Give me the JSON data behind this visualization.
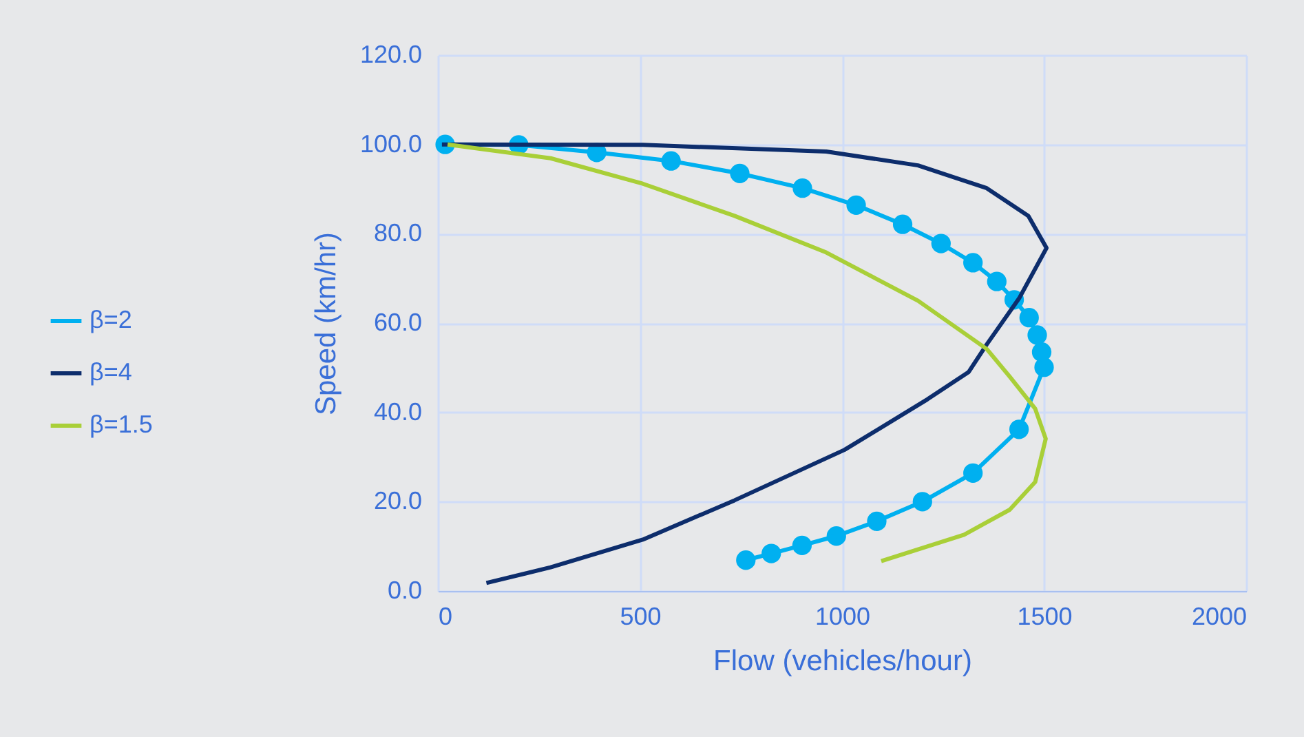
{
  "chart_data": {
    "type": "line",
    "xlabel": "Flow (vehicles/hour)",
    "ylabel": "Speed (km/hr)",
    "xlim": [
      0,
      2000
    ],
    "xticks": [
      0,
      500,
      1000,
      1500,
      2000
    ],
    "ylim": [
      0,
      120
    ],
    "yticks": [
      {
        "value": 0,
        "label": "0.0"
      },
      {
        "value": 20,
        "label": "20.0"
      },
      {
        "value": 40,
        "label": "40.0"
      },
      {
        "value": 60,
        "label": "60.0"
      },
      {
        "value": 80,
        "label": "80.0"
      },
      {
        "value": 100,
        "label": "100.0"
      },
      {
        "value": 120,
        "label": "120.0"
      }
    ],
    "grid": true,
    "legend": "left",
    "line_style": "solid",
    "series": [
      {
        "name": "β=2",
        "color": "#00b0f0",
        "marker": "circle",
        "x": [
          18,
          200,
          393,
          577,
          747,
          902,
          1035,
          1150,
          1245,
          1324,
          1383,
          1426,
          1463,
          1483,
          1494,
          1500,
          1438,
          1324,
          1199,
          1086,
          986,
          901,
          825,
          762
        ],
        "values": [
          100,
          99.9,
          98.2,
          96.3,
          93.5,
          90.2,
          86.4,
          82.1,
          77.8,
          73.5,
          69.3,
          65.2,
          61.2,
          57.3,
          53.5,
          50.1,
          36.2,
          26.4,
          20.0,
          15.6,
          12.3,
          10.2,
          8.4,
          6.9
        ]
      },
      {
        "name": "β=4",
        "color": "#0d2d6c",
        "marker": "none",
        "x": [
          10,
          507,
          961,
          1188,
          1358,
          1461,
          1506,
          1438,
          1358,
          1313,
          1211,
          1006,
          734,
          507,
          279,
          120
        ],
        "values": [
          100,
          99.9,
          98.4,
          95.3,
          90.2,
          84.0,
          76.8,
          65.5,
          55.2,
          49.0,
          42.9,
          31.6,
          20.3,
          11.5,
          5.3,
          1.8
        ]
      },
      {
        "name": "β=1.5",
        "color": "#a9cf38",
        "marker": "none",
        "x": [
          24,
          279,
          507,
          734,
          961,
          1188,
          1358,
          1415,
          1478,
          1504,
          1478,
          1415,
          1302,
          1097
        ],
        "values": [
          100,
          96.9,
          91.2,
          84.0,
          75.8,
          65.0,
          54.2,
          48.0,
          40.8,
          34.1,
          24.4,
          18.2,
          12.6,
          6.7
        ]
      }
    ]
  }
}
